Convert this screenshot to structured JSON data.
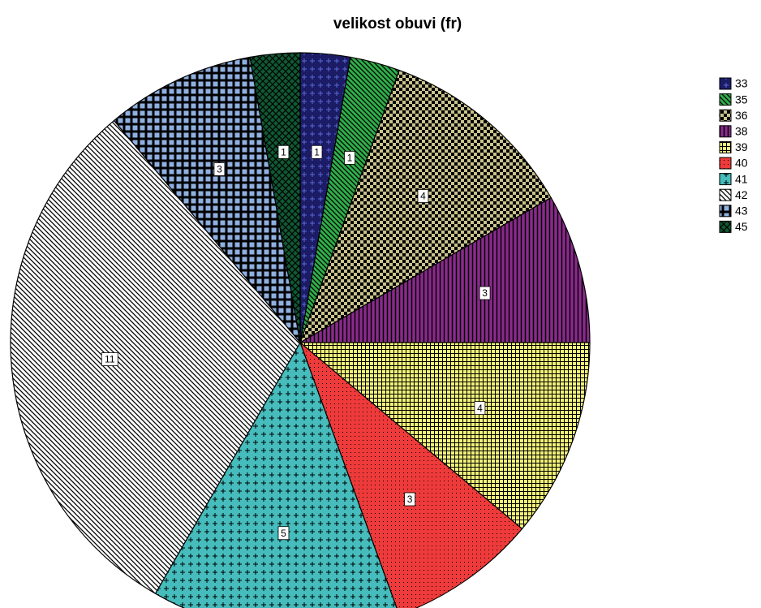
{
  "chart_data": {
    "type": "pie",
    "title": "velikost obuvi (fr)",
    "categories": [
      "33",
      "35",
      "36",
      "38",
      "39",
      "40",
      "41",
      "42",
      "43",
      "45"
    ],
    "values": [
      1,
      1,
      4,
      3,
      4,
      3,
      5,
      11,
      3,
      1
    ],
    "colors": [
      "#1c1c66",
      "#2fae4a",
      "#c9c28c",
      "#8a2a8c",
      "#f2f27a",
      "#ee3a3a",
      "#46bcbc",
      "#ffffff",
      "#8fb0e0",
      "#0f5a34"
    ],
    "patterns": [
      "plus",
      "diag",
      "check",
      "vlines",
      "grid",
      "dots",
      "plus",
      "diag",
      "squares",
      "crosshatch"
    ],
    "legend": "top-right"
  }
}
